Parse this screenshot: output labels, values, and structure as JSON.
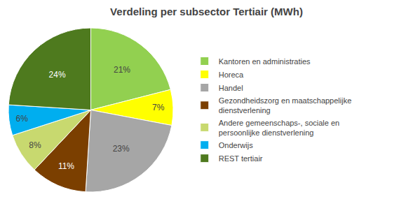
{
  "chart_data": {
    "type": "pie",
    "title": "Verdeling per subsector Tertiair (MWh)",
    "categories": [
      "Kantoren en administraties",
      "Horeca",
      "Handel",
      "Gezondheidszorg en maatschappelijke\ndienstverlening",
      "Andere gemeenschaps-, sociale en\npersoonlijke dienstverlening",
      "Onderwijs",
      "REST tertiair"
    ],
    "values": [
      21,
      7,
      23,
      11,
      8,
      6,
      24
    ],
    "value_labels": [
      "21%",
      "7%",
      "23%",
      "11%",
      "8%",
      "6%",
      "24%"
    ],
    "colors": [
      "#92D050",
      "#FFFF00",
      "#A6A6A6",
      "#7B3F00",
      "#C8D96F",
      "#00AEEF",
      "#4E7A1E"
    ],
    "data_labels": true,
    "legend": "right"
  }
}
